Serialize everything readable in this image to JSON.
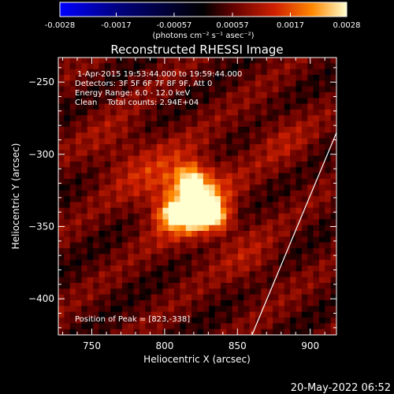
{
  "chart_data": {
    "type": "heatmap",
    "title": "Reconstructed RHESSI Image",
    "xlabel": "Heliocentric X (arcsec)",
    "ylabel": "Heliocentric Y (arcsec)",
    "xlim": [
      727,
      918
    ],
    "ylim": [
      -425,
      -233
    ],
    "x_ticks": [
      750,
      800,
      850,
      900
    ],
    "y_ticks": [
      -250,
      -300,
      -350,
      -400
    ],
    "colorbar": {
      "range": [
        -0.0028,
        0.0028
      ],
      "ticks": [
        "-0.0028",
        "-0.0017",
        "-0.00057",
        "0.00057",
        "0.0017",
        "0.0028"
      ],
      "units_label": "(photons cm⁻² s⁻¹ asec⁻²)"
    },
    "annotations": [
      "1-Apr-2015 19:53:44.000 to 19:59:44.000",
      "Detectors: 3F 5F 6F 7F 8F 9F, Att 0",
      "Energy Range: 6.0 - 12.0 keV",
      "Clean    Total counts: 2.94E+04"
    ],
    "peak_label": "Position of Peak = [823,-338]",
    "peak": [
      823,
      -338
    ],
    "sources": [
      {
        "x": 823,
        "y": -338,
        "amplitude": 0.0028,
        "sigma": 9
      },
      {
        "x": 818,
        "y": -318,
        "amplitude": 0.0016,
        "sigma": 7
      },
      {
        "x": 805,
        "y": -342,
        "amplitude": 0.0014,
        "sigma": 6
      },
      {
        "x": 838,
        "y": -345,
        "amplitude": 0.0011,
        "sigma": 6
      },
      {
        "x": 815,
        "y": -330,
        "amplitude": 0.0016,
        "sigma": 20
      },
      {
        "x": 770,
        "y": -300,
        "amplitude": 0.0005,
        "sigma": 18
      },
      {
        "x": 880,
        "y": -290,
        "amplitude": 0.0004,
        "sigma": 16
      },
      {
        "x": 860,
        "y": -375,
        "amplitude": 0.0004,
        "sigma": 15
      }
    ],
    "background": 0.0005,
    "limb_line": [
      [
        860,
        -425
      ],
      [
        918,
        -285
      ]
    ]
  },
  "timestamp": "20-May-2022 06:52"
}
